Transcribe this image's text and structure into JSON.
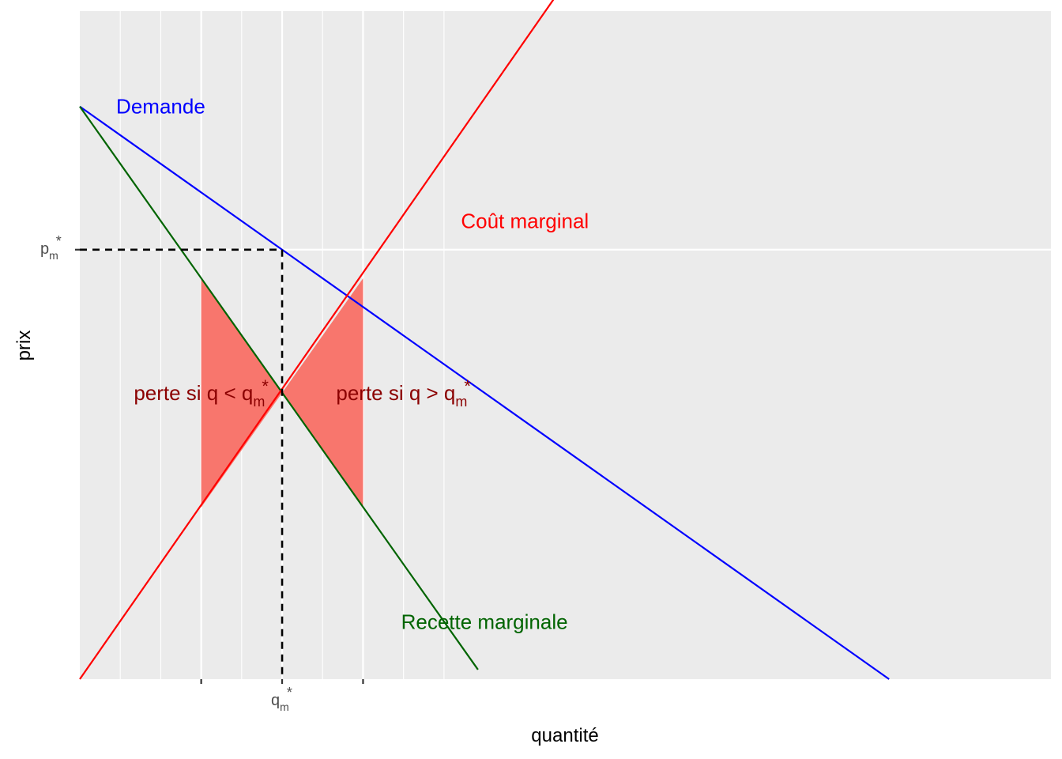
{
  "chart_data": {
    "type": "line",
    "title": "",
    "xlabel": "quantité",
    "ylabel": "prix",
    "xlim": [
      0,
      12
    ],
    "ylim": [
      0,
      14
    ],
    "grid": true,
    "background": "#EBEBEB",
    "series": [
      {
        "name": "Demande",
        "color": "#0000FF",
        "x": [
          0,
          10
        ],
        "y": [
          12,
          0
        ],
        "label_at": [
          1,
          12
        ]
      },
      {
        "name": "Recette marginale",
        "color": "#006400",
        "x": [
          0,
          4.92
        ],
        "y": [
          12,
          0.2
        ],
        "label_at": [
          5,
          1.2
        ]
      },
      {
        "name": "Coût marginal",
        "color": "#FF0000",
        "x": [
          0,
          6
        ],
        "y": [
          0,
          14.6
        ],
        "label_at": [
          5.5,
          9.6
        ]
      }
    ],
    "shaded_areas": [
      {
        "name": "perte si q < q",
        "fill": "#F8766D",
        "x": [
          1.5,
          2.5
        ],
        "y_upper": [
          8.4,
          6
        ],
        "y_lower": [
          3.6,
          6
        ],
        "label": "perte si q < q",
        "label_sub": "m",
        "label_sup": "*",
        "label_at": [
          1.5,
          6
        ]
      },
      {
        "name": "perte si q > q",
        "fill": "#F8766D",
        "x": [
          2.5,
          3.5
        ],
        "y_upper": [
          6,
          8.4
        ],
        "y_lower": [
          6,
          3.6
        ],
        "label": "perte si q > q",
        "label_sub": "m",
        "label_sup": "*",
        "label_at": [
          4,
          6
        ]
      }
    ],
    "label_color": "#8B0000",
    "monopoly": {
      "q": 2.5,
      "p": 9,
      "q_label": "q",
      "p_label": "p",
      "sub": "m",
      "sup": "*"
    },
    "x_ticks": [
      1.5,
      2.5,
      3.5
    ],
    "x_tick_labels": [
      "",
      "q*m",
      ""
    ],
    "y_ticks": [
      9
    ],
    "y_tick_labels": [
      "p*m"
    ],
    "x_minor_grid": [
      0.5,
      1,
      2,
      3,
      4,
      4.5
    ],
    "x_major_grid": [
      1.5,
      2.5,
      3.5
    ],
    "y_major_grid": [
      9
    ]
  }
}
